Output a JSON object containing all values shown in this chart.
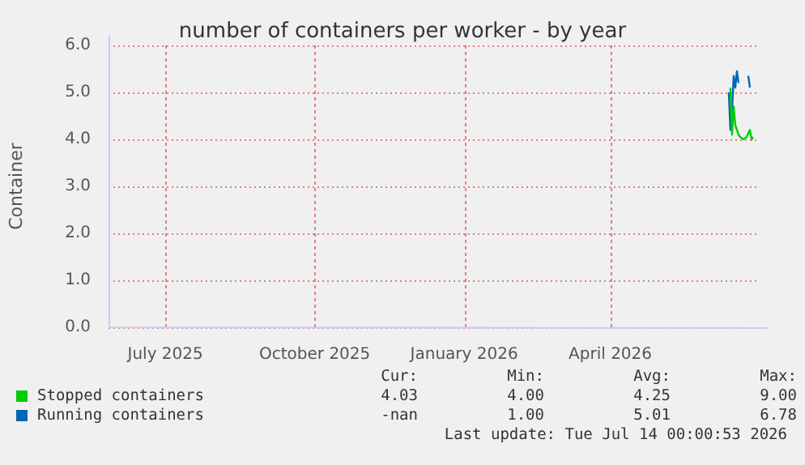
{
  "chart_data": {
    "type": "line",
    "title": "number of containers per worker - by year",
    "ylabel": "Container",
    "xlim": [
      "2025-05-27",
      "2026-07-01"
    ],
    "xticks": [
      {
        "value": "2025-07-01",
        "label": "July 2025"
      },
      {
        "value": "2025-10-01",
        "label": "October 2025"
      },
      {
        "value": "2026-01-01",
        "label": "January 2026"
      },
      {
        "value": "2026-04-01",
        "label": "April 2026"
      }
    ],
    "ylim": [
      0,
      6
    ],
    "yticks": [
      {
        "value": 0,
        "label": "0.0"
      },
      {
        "value": 1,
        "label": "1.0"
      },
      {
        "value": 2,
        "label": "2.0"
      },
      {
        "value": 3,
        "label": "3.0"
      },
      {
        "value": 4,
        "label": "4.0"
      },
      {
        "value": 5,
        "label": "5.0"
      },
      {
        "value": 6,
        "label": "6.0"
      }
    ],
    "grid": true,
    "legend": "bottom",
    "marker": "none",
    "line_style": "solid",
    "series": [
      {
        "name": "Stopped containers",
        "color": "#00cc00",
        "x": [
          "2026-06-14",
          "2026-06-15",
          "2026-06-16",
          "2026-06-17",
          "2026-06-19",
          "2026-06-20",
          "2026-06-22",
          "2026-06-24",
          "2026-06-26",
          "2026-06-27",
          "2026-06-28"
        ],
        "values": [
          5.1,
          4.1,
          4.7,
          4.3,
          4.1,
          4.05,
          4.0,
          4.05,
          4.2,
          4.0,
          4.05
        ]
      },
      {
        "name": "Running containers",
        "color": "#0066b3",
        "x": [
          "2026-06-13",
          "2026-06-14",
          "2026-06-15",
          "2026-06-16",
          "2026-06-17",
          "2026-06-18",
          "2026-06-19",
          "2026-06-21",
          "2026-06-25",
          "2026-06-26"
        ],
        "values": [
          5.0,
          4.2,
          4.6,
          5.35,
          5.1,
          5.45,
          5.2,
          null,
          5.35,
          5.1
        ]
      }
    ],
    "annotations": [
      "Cur:",
      "Min:",
      "Avg:",
      "Max:",
      "4.03",
      "4.00",
      "4.25",
      "9.00",
      "-nan",
      "1.00",
      "5.01",
      "6.78",
      "Last update: Tue Jul 14 00:00:53 2026"
    ]
  }
}
